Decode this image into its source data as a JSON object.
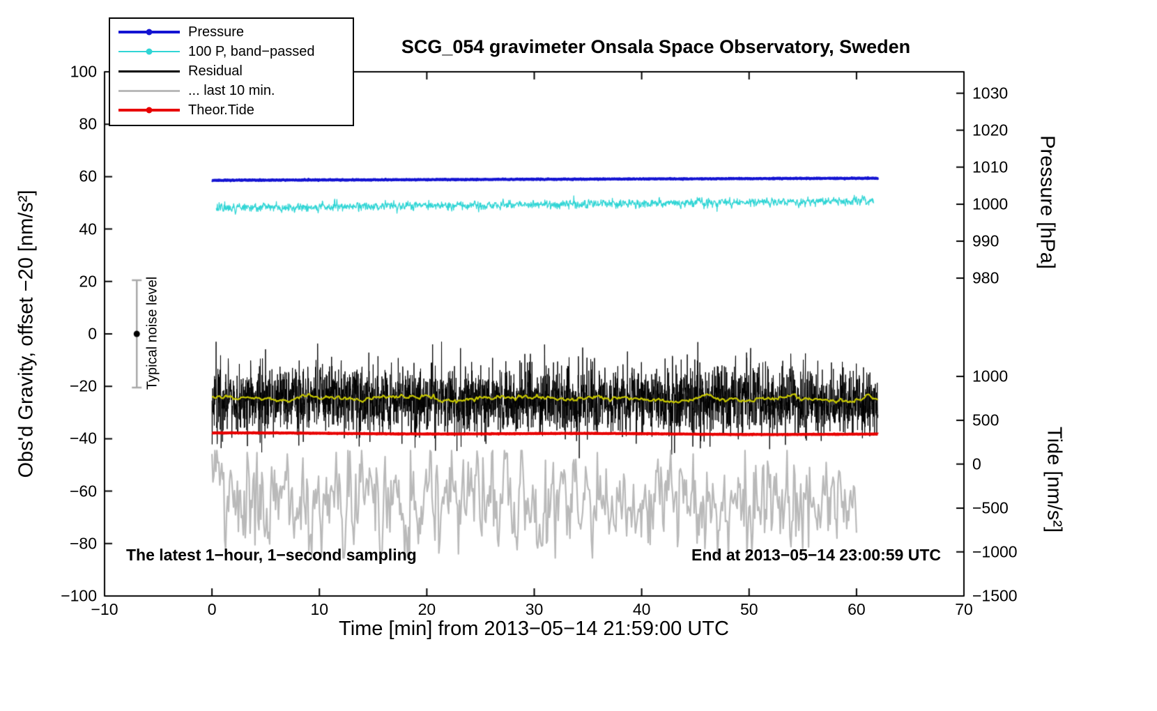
{
  "title": "SCG_054 gravimeter Onsala Space Observatory, Sweden",
  "annotations": {
    "sampling": "The latest 1−hour, 1−second sampling",
    "end_time": "End at 2013−05−14 23:00:59 UTC",
    "noise_label": "Typical noise level"
  },
  "axes": {
    "x": {
      "label": "Time [min] from 2013−05−14 21:59:00 UTC",
      "min": -10,
      "max": 70,
      "ticks": [
        -10,
        0,
        10,
        20,
        30,
        40,
        50,
        60,
        70
      ]
    },
    "y_left": {
      "label": "Obs'd Gravity, offset −20 [nm/s²]",
      "min": -100,
      "max": 100,
      "ticks": [
        -100,
        -80,
        -60,
        -40,
        -20,
        0,
        20,
        40,
        60,
        80,
        100
      ]
    },
    "y_right_pressure": {
      "label": "Pressure [hPa]",
      "ticks": [
        {
          "value": 1030,
          "pos_left_units": 91.8
        },
        {
          "value": 1020,
          "pos_left_units": 77.7
        },
        {
          "value": 1010,
          "pos_left_units": 63.6
        },
        {
          "value": 1000,
          "pos_left_units": 49.5
        },
        {
          "value": 990,
          "pos_left_units": 35.4
        },
        {
          "value": 980,
          "pos_left_units": 21.3
        }
      ]
    },
    "y_right_tide": {
      "label": "Tide [nm/s²]",
      "ticks": [
        {
          "value": 1000,
          "pos_left_units": -16.2
        },
        {
          "value": 500,
          "pos_left_units": -33.0
        },
        {
          "value": 0,
          "pos_left_units": -49.7
        },
        {
          "value": -500,
          "pos_left_units": -66.5
        },
        {
          "value": -1000,
          "pos_left_units": -83.2
        },
        {
          "value": -1500,
          "pos_left_units": -100
        }
      ]
    }
  },
  "legend": [
    {
      "label": "Pressure",
      "color": "#1414d2",
      "marker": true,
      "line_width": 4
    },
    {
      "label": "100 P, band−passed",
      "color": "#30d5d5",
      "marker": true,
      "line_width": 2
    },
    {
      "label": "Residual",
      "color": "#000000",
      "marker": false,
      "line_width": 3
    },
    {
      "label": "... last 10 min.",
      "color": "#b9b9b9",
      "marker": false,
      "line_width": 3
    },
    {
      "label": "Theor.Tide",
      "color": "#e80000",
      "marker": true,
      "line_width": 4
    }
  ],
  "chart_data": {
    "type": "line",
    "title": "SCG_054 gravimeter Onsala Space Observatory, Sweden",
    "xlabel": "Time [min] from 2013−05−14 21:59:00 UTC",
    "ylabel": "Obs'd Gravity, offset −20 [nm/s²]",
    "xlim": [
      -10,
      70
    ],
    "ylim_left": [
      -100,
      100
    ],
    "grid": false,
    "legend_position": "top-left",
    "sampling": "1-second samples over the latest 1 hour (x in minutes 0..62)",
    "series": [
      {
        "name": "Residual",
        "axis": "left",
        "color": "#000000",
        "line_width": 1,
        "x_start": 0,
        "x_end": 62,
        "points": 3720,
        "value_start": -25.0,
        "value_end": -25.5,
        "noise_std": 6.3,
        "ar": 0.15,
        "spike_prob": 0.02,
        "spike_amp": 9,
        "clamp": [
          -47.5,
          -3
        ],
        "seed": 33,
        "approx_range": [
          -47,
          -4
        ],
        "in_legend": true
      },
      {
        "name": "Residual smoothed",
        "axis": "left",
        "color": "#c6c600",
        "line_width": 2.2,
        "x_start": 0,
        "x_end": 62,
        "points": 620,
        "value_start": -24.6,
        "value_end": -24.9,
        "noise_std": 0.35,
        "ar": 0.75,
        "wiggle_amp": 0.5,
        "wiggle_cycles": 7,
        "seed": 44,
        "in_legend": false
      },
      {
        "name": "Theor.Tide",
        "axis": "left",
        "color": "#e80000",
        "line_width": 4,
        "x_start": 0,
        "x_end": 62,
        "points": 1860,
        "value_start": -37.9,
        "value_end": -38.3,
        "noise_std": 0.05,
        "wiggle_amp": 0.15,
        "wiggle_cycles": 2,
        "seed": 55,
        "approx_tide_units": 350,
        "in_legend": true
      },
      {
        "name": "... last 10 min.",
        "axis": "left",
        "color": "#b9b9b9",
        "line_width": 2.2,
        "x_start": 0,
        "x_end": 60,
        "points": 660,
        "value_start": -62.5,
        "value_end": -63.5,
        "noise_std": 8.5,
        "ar": 0.45,
        "clamp": [
          -85.5,
          -44.5
        ],
        "seed": 66,
        "approx_range": [
          -85,
          -45
        ],
        "in_legend": true
      },
      {
        "name": "100 P, band−passed",
        "axis": "left",
        "color": "#30d5d5",
        "line_width": 1.3,
        "x_start": 0.4,
        "x_end": 61.6,
        "points": 1860,
        "value_start": 48.0,
        "value_end": 50.8,
        "noise_std": 0.75,
        "ar": 0.3,
        "spike_prob": 0.012,
        "spike_amp": 1.6,
        "seed": 22,
        "in_legend": true
      },
      {
        "name": "Pressure",
        "axis": "pressure",
        "color": "#1414d2",
        "line_width": 3.5,
        "x_start": 0,
        "x_end": 62,
        "points": 3720,
        "value_start": 58.6,
        "value_end": 59.4,
        "noise_std": 0.09,
        "ar": 0.2,
        "seed": 11,
        "approx_hpa_start": 1006.4,
        "approx_hpa_end": 1007.0,
        "in_legend": true
      }
    ],
    "noise_errorbar": {
      "x": -7,
      "center": 0,
      "low": -20.5,
      "high": 20.5,
      "label": "Typical noise level"
    }
  }
}
